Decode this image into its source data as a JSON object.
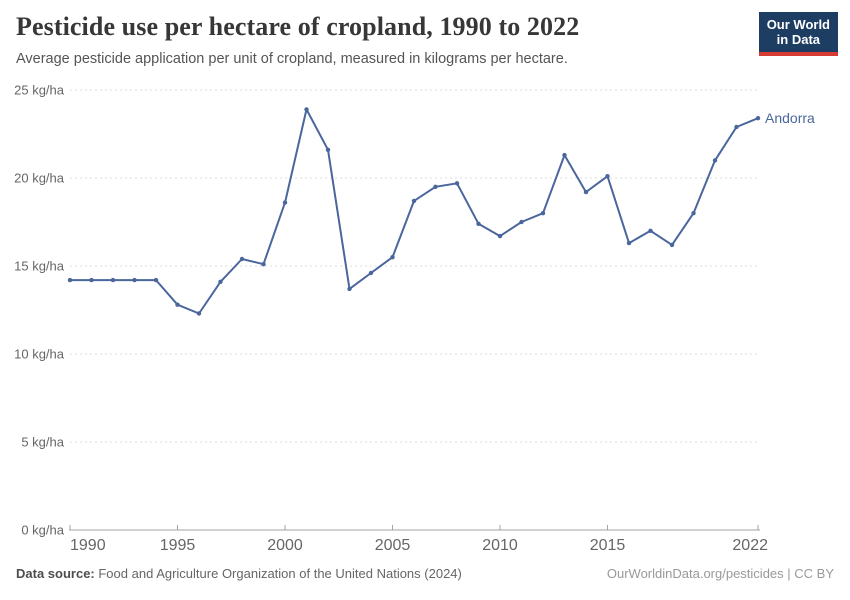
{
  "header": {
    "title": "Pesticide use per hectare of cropland, 1990 to 2022",
    "subtitle": "Average pesticide application per unit of cropland, measured in kilograms per hectare.",
    "logo_line1": "Our World",
    "logo_line2": "in Data"
  },
  "chart_data": {
    "type": "line",
    "title": "Pesticide use per hectare of cropland, 1990 to 2022",
    "xlabel": "",
    "ylabel": "kg/ha",
    "xlim": [
      1990,
      2022
    ],
    "ylim": [
      0,
      25
    ],
    "grid": "horizontal-dashed",
    "legend": "line-end-label",
    "x": [
      1990,
      1991,
      1992,
      1993,
      1994,
      1995,
      1996,
      1997,
      1998,
      1999,
      2000,
      2001,
      2002,
      2003,
      2004,
      2005,
      2006,
      2007,
      2008,
      2009,
      2010,
      2011,
      2012,
      2013,
      2014,
      2015,
      2016,
      2017,
      2018,
      2019,
      2020,
      2021,
      2022
    ],
    "series": [
      {
        "name": "Andorra",
        "color": "#4a669c",
        "values": [
          14.2,
          14.2,
          14.2,
          14.2,
          14.2,
          12.8,
          12.3,
          14.1,
          15.4,
          15.1,
          18.6,
          23.9,
          21.6,
          13.7,
          14.6,
          15.5,
          18.7,
          19.5,
          19.7,
          17.4,
          16.7,
          17.5,
          18.0,
          21.3,
          19.2,
          20.1,
          16.3,
          17.0,
          16.2,
          18.0,
          21.0,
          22.9,
          23.4
        ]
      }
    ],
    "y_ticks": [
      {
        "value": 0,
        "label": "0 kg/ha"
      },
      {
        "value": 5,
        "label": "5 kg/ha"
      },
      {
        "value": 10,
        "label": "10 kg/ha"
      },
      {
        "value": 15,
        "label": "15 kg/ha"
      },
      {
        "value": 20,
        "label": "20 kg/ha"
      },
      {
        "value": 25,
        "label": "25 kg/ha"
      }
    ],
    "x_ticks": [
      {
        "value": 1990,
        "label": "1990"
      },
      {
        "value": 1995,
        "label": "1995"
      },
      {
        "value": 2000,
        "label": "2000"
      },
      {
        "value": 2005,
        "label": "2005"
      },
      {
        "value": 2010,
        "label": "2010"
      },
      {
        "value": 2015,
        "label": "2015"
      },
      {
        "value": 2022,
        "label": "2022"
      }
    ]
  },
  "footer": {
    "datasource_label": "Data source:",
    "datasource_text": " Food and Agriculture Organization of the United Nations (2024)",
    "link_text": "OurWorldinData.org/pesticides | CC BY"
  },
  "colors": {
    "line": "#4a669c",
    "series_label": "#4a669c",
    "grid": "#dcdcdc",
    "axis": "#a3a3a3",
    "tick_text": "#666666",
    "logo_bg": "#1d3d63",
    "logo_red": "#d73c34"
  }
}
